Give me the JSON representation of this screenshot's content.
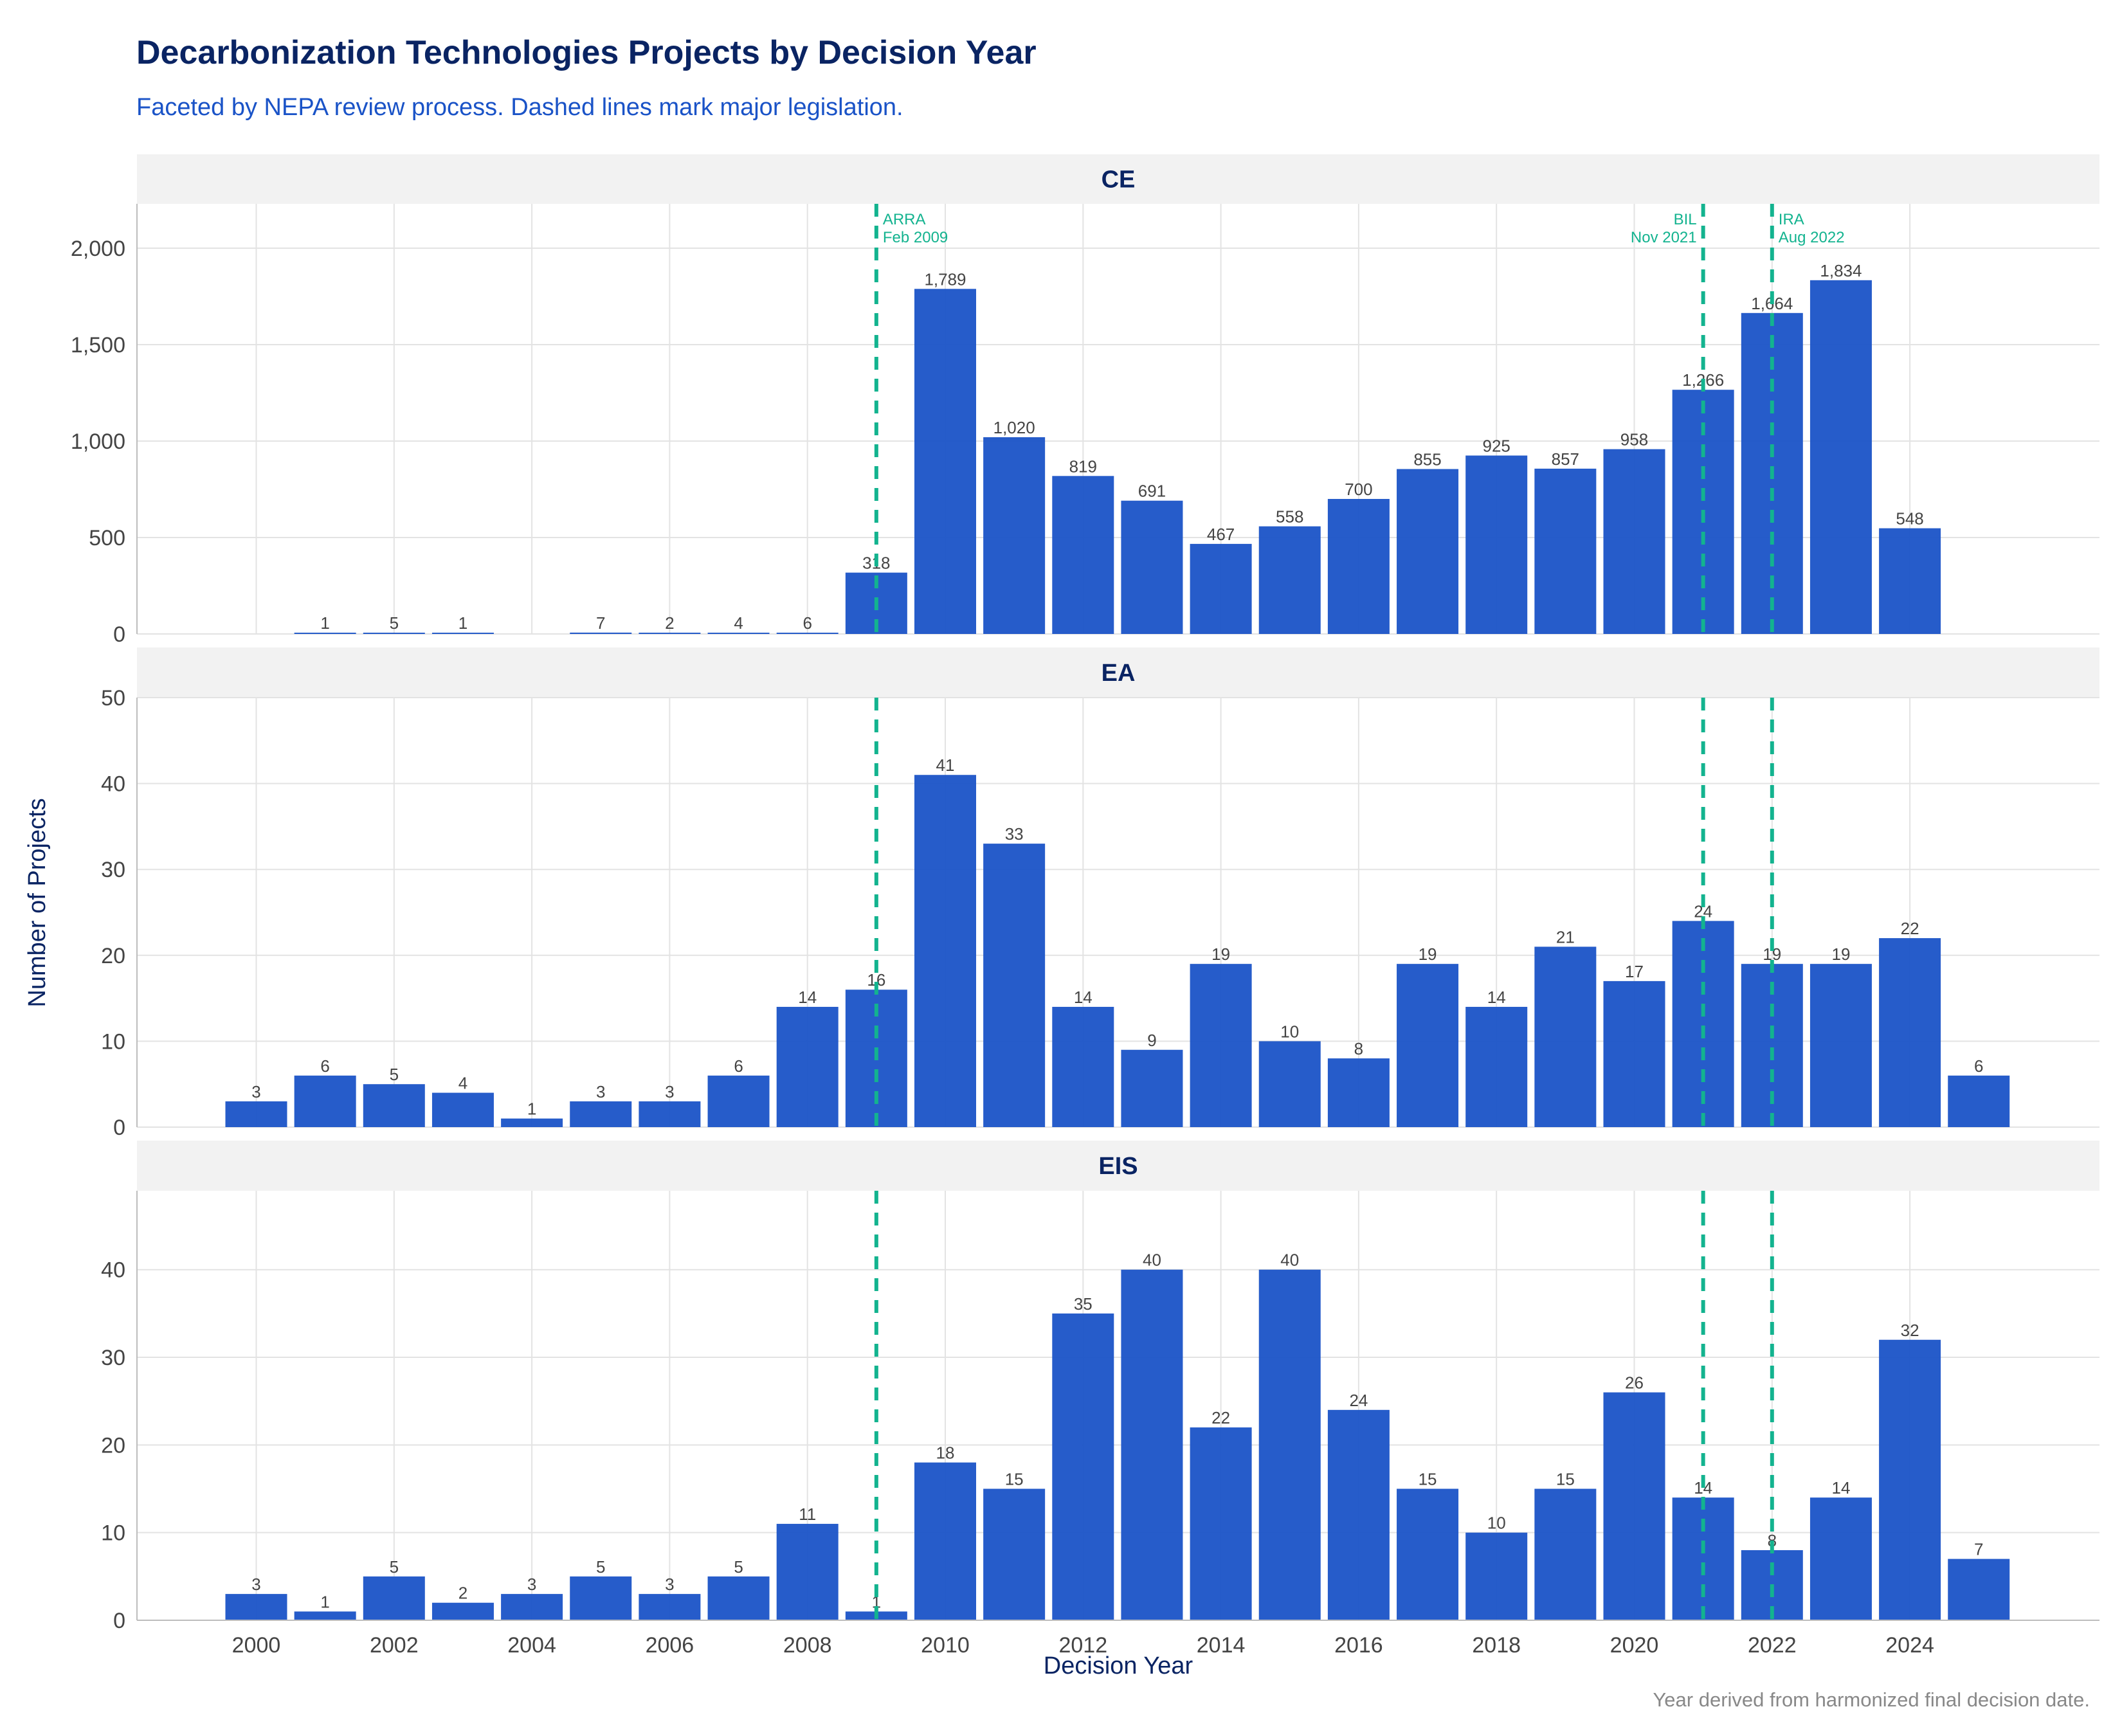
{
  "title": "Decarbonization Technologies Projects by Decision Year",
  "subtitle": "Faceted by NEPA review process. Dashed lines mark major legislation.",
  "caption": "Year derived from harmonized final decision date.",
  "colors": {
    "bar": "#1a53c7",
    "legislation": "#13b38f",
    "title": "#0a2463",
    "strip": "#f2f2f2",
    "grid": "#e3e3e3"
  },
  "chart_data": {
    "type": "bar",
    "xlabel": "Decision Year",
    "ylabel": "Number of Projects",
    "x_ticks": [
      "2000",
      "2002",
      "2004",
      "2006",
      "2008",
      "2010",
      "2012",
      "2014",
      "2016",
      "2018",
      "2020",
      "2022",
      "2024"
    ],
    "grid": true,
    "legislation": [
      {
        "year": 2009,
        "label_line1": "ARRA",
        "label_line2": "Feb 2009",
        "side": "right"
      },
      {
        "year": 2021,
        "label_line1": "BIL",
        "label_line2": "Nov 2021",
        "side": "left"
      },
      {
        "year": 2022,
        "label_line1": "IRA",
        "label_line2": "Aug 2022",
        "side": "right"
      }
    ],
    "facets": [
      {
        "name": "CE",
        "ylim": [
          0,
          2230
        ],
        "y_ticks": [
          0,
          500,
          1000,
          1500,
          2000
        ],
        "y_tick_labels": [
          "0",
          "500",
          "1,000",
          "1,500",
          "2,000"
        ],
        "years": [
          2001,
          2002,
          2003,
          2005,
          2006,
          2007,
          2008,
          2009,
          2010,
          2011,
          2012,
          2013,
          2014,
          2015,
          2016,
          2017,
          2018,
          2019,
          2020,
          2021,
          2022,
          2023,
          2024
        ],
        "values": [
          1,
          5,
          1,
          7,
          2,
          4,
          6,
          318,
          1789,
          1020,
          819,
          691,
          467,
          558,
          700,
          855,
          925,
          857,
          958,
          1266,
          1664,
          1834,
          548
        ],
        "labels": [
          "1",
          "5",
          "1",
          "7",
          "2",
          "4",
          "6",
          "318",
          "1,789",
          "1,020",
          "819",
          "691",
          "467",
          "558",
          "700",
          "855",
          "925",
          "857",
          "958",
          "1,266",
          "1,664",
          "1,834",
          "548"
        ]
      },
      {
        "name": "EA",
        "ylim": [
          0,
          50
        ],
        "y_ticks": [
          0,
          10,
          20,
          30,
          40,
          50
        ],
        "y_tick_labels": [
          "0",
          "10",
          "20",
          "30",
          "40",
          "50"
        ],
        "years": [
          2000,
          2001,
          2002,
          2003,
          2004,
          2005,
          2006,
          2007,
          2008,
          2009,
          2010,
          2011,
          2012,
          2013,
          2014,
          2015,
          2016,
          2017,
          2018,
          2019,
          2020,
          2021,
          2022,
          2023,
          2024,
          2025
        ],
        "values": [
          3,
          6,
          5,
          4,
          1,
          3,
          3,
          6,
          14,
          16,
          41,
          33,
          14,
          9,
          19,
          10,
          8,
          19,
          14,
          21,
          17,
          24,
          19,
          19,
          22,
          6
        ],
        "labels": [
          "3",
          "6",
          "5",
          "4",
          "1",
          "3",
          "3",
          "6",
          "14",
          "16",
          "41",
          "33",
          "14",
          "9",
          "19",
          "10",
          "8",
          "19",
          "14",
          "21",
          "17",
          "24",
          "19",
          "19",
          "22",
          "6"
        ]
      },
      {
        "name": "EIS",
        "ylim": [
          0,
          49
        ],
        "y_ticks": [
          0,
          10,
          20,
          30,
          40
        ],
        "y_tick_labels": [
          "0",
          "10",
          "20",
          "30",
          "40"
        ],
        "years": [
          2000,
          2001,
          2002,
          2003,
          2004,
          2005,
          2006,
          2007,
          2008,
          2009,
          2010,
          2011,
          2012,
          2013,
          2014,
          2015,
          2016,
          2017,
          2018,
          2019,
          2020,
          2021,
          2022,
          2023,
          2024,
          2025
        ],
        "values": [
          3,
          1,
          5,
          2,
          3,
          5,
          3,
          5,
          11,
          1,
          18,
          15,
          35,
          40,
          22,
          40,
          24,
          15,
          10,
          15,
          26,
          14,
          8,
          14,
          32,
          7
        ],
        "labels": [
          "3",
          "1",
          "5",
          "2",
          "3",
          "5",
          "3",
          "5",
          "11",
          "1",
          "18",
          "15",
          "35",
          "40",
          "22",
          "40",
          "24",
          "15",
          "10",
          "15",
          "26",
          "14",
          "8",
          "14",
          "32",
          "7"
        ]
      }
    ]
  }
}
